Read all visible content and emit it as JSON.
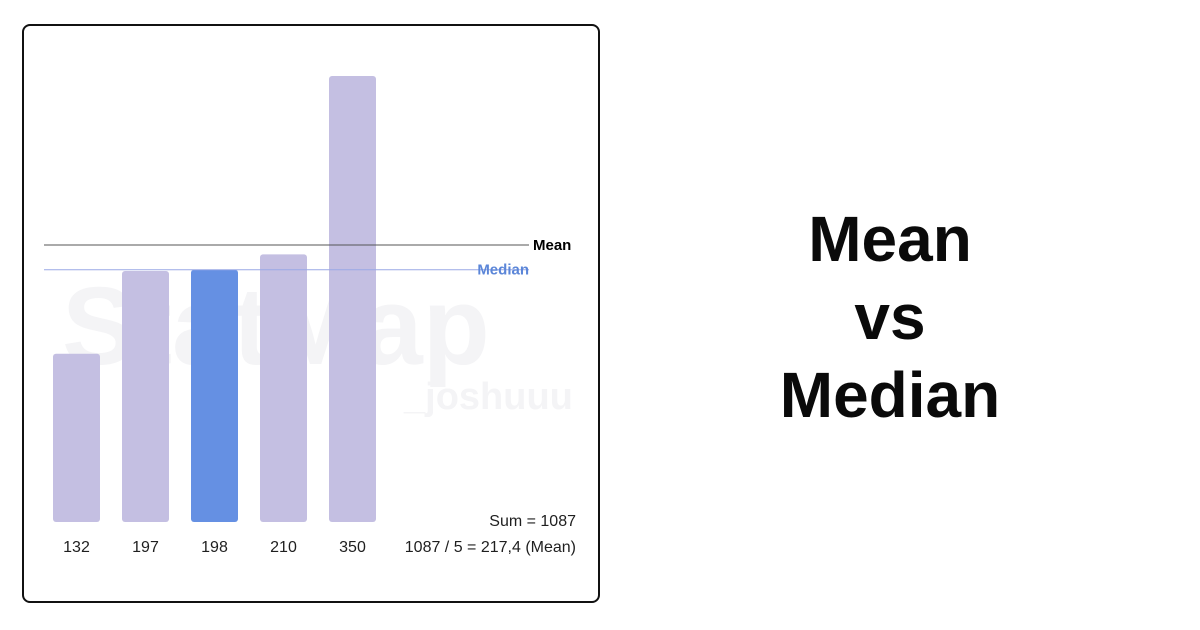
{
  "headline": {
    "line1": "Mean",
    "line2": "vs",
    "line3": "Median"
  },
  "watermark": {
    "main": "StatMap",
    "sub": "_joshuuu"
  },
  "colors": {
    "bar": "#c4bfe2",
    "highlight_bar": "#6590e3",
    "mean_line": "#555555",
    "median_line": "#9aa8e6",
    "mean_label": "#000000",
    "median_label": "#5b86d8"
  },
  "chart_data": {
    "type": "bar",
    "categories": [
      "132",
      "197",
      "198",
      "210",
      "350"
    ],
    "values": [
      132,
      197,
      198,
      210,
      350
    ],
    "highlight_index": 2,
    "ylim": [
      0,
      350
    ],
    "title": "",
    "xlabel": "",
    "ylabel": "",
    "grid": false,
    "reference_lines": [
      {
        "label": "Mean",
        "value": 217.4
      },
      {
        "label": "Median",
        "value": 198
      }
    ],
    "annotations": [
      "Sum = 1087",
      "1087 / 5 = 217,4 (Mean)"
    ]
  }
}
